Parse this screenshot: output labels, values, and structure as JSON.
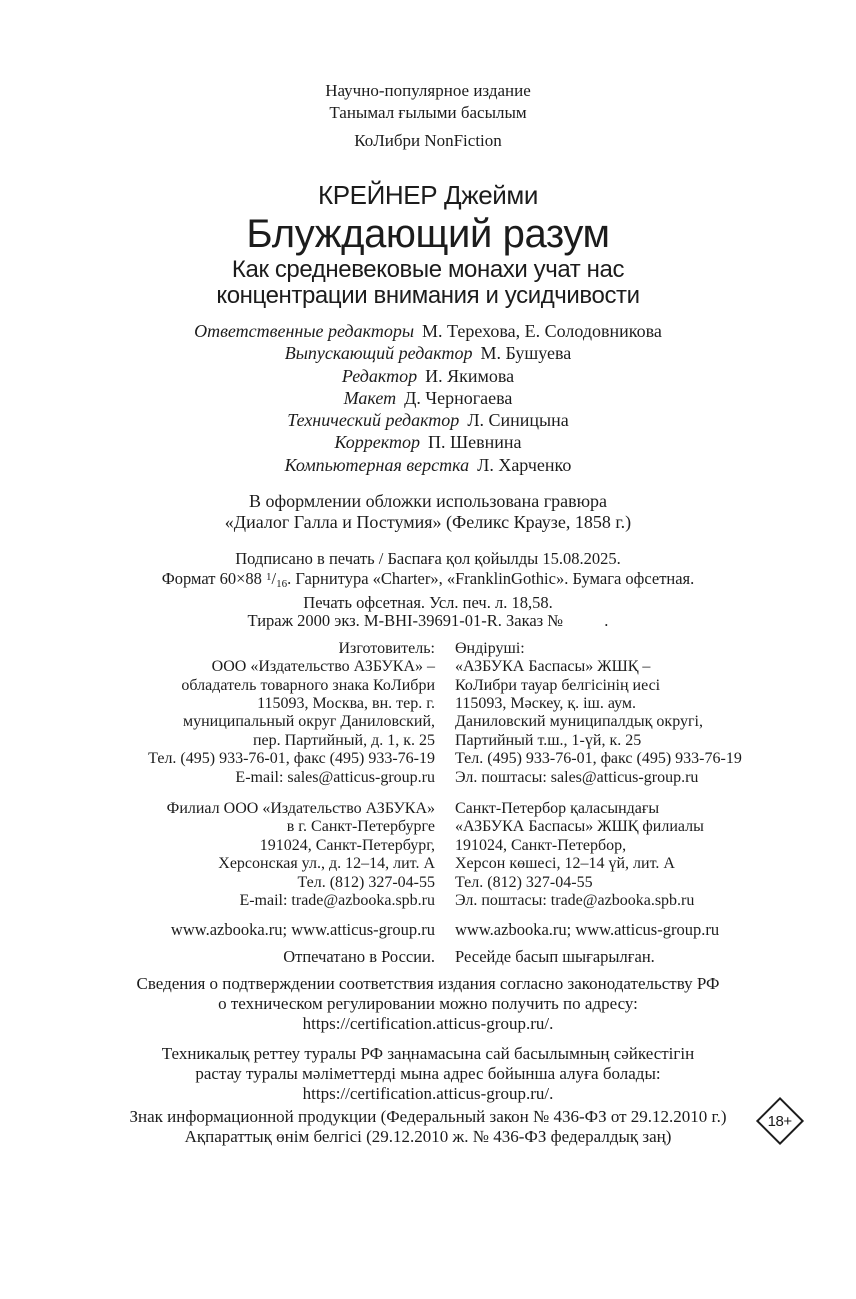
{
  "header": {
    "edition_note": [
      "Научно-популярное издание",
      "Танымал ғылыми басылым"
    ],
    "imprint": "КоЛибри NonFiction",
    "author": "КРЕЙНЕР Джейми",
    "title": "Блуждающий разум",
    "subtitle": [
      "Как средневековые монахи учат нас",
      "концентрации внимания и усидчивости"
    ]
  },
  "credits": [
    {
      "role": "Ответственные редакторы",
      "name": "М. Терехова, Е. Солодовникова"
    },
    {
      "role": "Выпускающий редактор",
      "name": "М. Бушуева"
    },
    {
      "role": "Редактор",
      "name": "И. Якимова"
    },
    {
      "role": "Макет",
      "name": "Д. Черногаева"
    },
    {
      "role": "Технический редактор",
      "name": "Л. Синицына"
    },
    {
      "role": "Корректор",
      "name": "П. Шевнина"
    },
    {
      "role": "Компьютерная верстка",
      "name": "Л. Харченко"
    }
  ],
  "cover_note": [
    "В оформлении обложки использована гравюра",
    "«Диалог Галла и Постумия» (Феликс Краузе, 1858 г.)"
  ],
  "print_info": {
    "line1": "Подписано в печать / Баспаға қол қойылды 15.08.2025.",
    "format_pre": "Формат 60×88 ",
    "format_sup": "1",
    "format_slash": "/",
    "format_sub": "16",
    "format_post": ". Гарнитура «Charter», «FranklinGothic». Бумага офсетная.",
    "line3": "Печать офсетная. Усл. печ. л. 18,58.",
    "line4": "Тираж 2000 экз. M-BHI-39691-01-R. Заказ №          ."
  },
  "manufacturer": {
    "ru": [
      "Изготовитель:",
      "ООО «Издательство АЗБУКА» –",
      "обладатель товарного знака КоЛибри",
      "115093, Москва, вн. тер. г.",
      "муниципальный округ Даниловский,",
      "пер. Партийный, д. 1, к. 25",
      "Тел. (495) 933-76-01, факс (495) 933-76-19",
      "E-mail: sales@atticus-group.ru"
    ],
    "kz": [
      "Өндіруші:",
      "«АЗБУКА Баспасы» ЖШҚ –",
      "КоЛибри тауар белгісінің иесі",
      "115093, Мәскеу, қ. іш. аум.",
      "Даниловский муниципалдық округі,",
      "Партийный т.ш., 1-үй, к. 25",
      "Тел. (495) 933-76-01, факс (495) 933-76-19",
      "Эл. поштасы: sales@atticus-group.ru"
    ]
  },
  "branch": {
    "ru": [
      "Филиал ООО «Издательство АЗБУКА»",
      "в г. Санкт-Петербурге",
      "191024, Санкт-Петербург,",
      "Херсонская ул., д. 12–14, лит. А",
      "Тел. (812) 327-04-55",
      "E-mail: trade@azbooka.spb.ru"
    ],
    "kz": [
      "Санкт-Петербор қаласындағы",
      "«АЗБУКА Баспасы» ЖШҚ филиалы",
      "191024, Санкт-Петербор,",
      "Херсон көшесі, 12–14 үй, лит. А",
      "Тел. (812) 327-04-55",
      "Эл. поштасы: trade@azbooka.spb.ru"
    ]
  },
  "websites": {
    "ru": "www.azbooka.ru; www.atticus-group.ru",
    "kz": "www.azbooka.ru; www.atticus-group.ru"
  },
  "printed_in": {
    "ru": "Отпечатано в России.",
    "kz": "Ресейде басып шығарылған."
  },
  "certification_ru": [
    "Сведения о подтверждении соответствия издания согласно законодательству РФ",
    "о техническом регулировании можно получить по адресу:",
    "https://certification.atticus-group.ru/."
  ],
  "certification_kz": [
    "Техникалық реттеу туралы РФ заңнамасына сай басылымның сәйкестігін",
    "растау туралы мәліметтерді мына адрес бойынша алуға болады:",
    "https://certification.atticus-group.ru/."
  ],
  "info_sign": [
    "Знак информационной продукции (Федеральный закон № 436-ФЗ от 29.12.2010 г.)",
    "Ақпараттық өнім белгісі (29.12.2010 ж. № 436-ФЗ федералдық заң)"
  ],
  "age_badge": "18+",
  "colors": {
    "text": "#1c1c1c",
    "background": "#ffffff"
  }
}
